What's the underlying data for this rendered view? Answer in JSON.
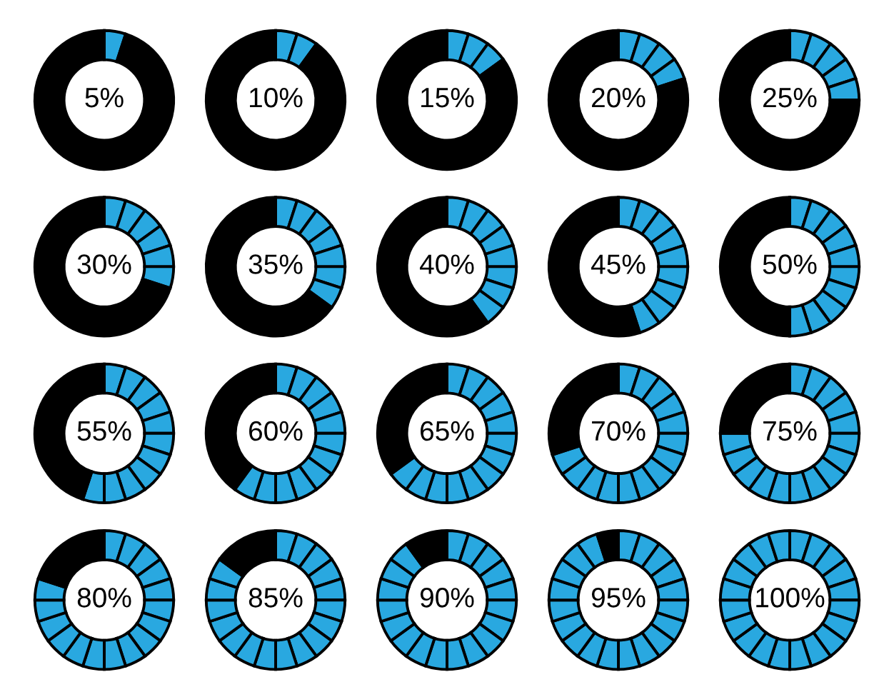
{
  "chart_data": [
    {
      "type": "donut",
      "categories": [
        null,
        null
      ],
      "values": [
        5,
        95
      ],
      "colors": [
        "#29a8e0",
        "#000000"
      ],
      "annotations": [
        "5%"
      ]
    },
    {
      "type": "donut",
      "categories": [
        null,
        null,
        null
      ],
      "values": [
        5,
        5,
        90
      ],
      "colors": [
        "#29a8e0",
        "#29a8e0",
        "#000000"
      ],
      "annotations": [
        "10%"
      ]
    },
    {
      "type": "donut",
      "categories": [
        null,
        null,
        null,
        null
      ],
      "values": [
        5,
        5,
        5,
        85
      ],
      "colors": [
        "#29a8e0",
        "#29a8e0",
        "#29a8e0",
        "#000000"
      ],
      "annotations": [
        "15%"
      ]
    },
    {
      "type": "donut",
      "categories": [
        null,
        null,
        null,
        null,
        null
      ],
      "values": [
        5,
        5,
        5,
        5,
        80
      ],
      "colors": [
        "#29a8e0",
        "#29a8e0",
        "#29a8e0",
        "#29a8e0",
        "#000000"
      ],
      "annotations": [
        "20%"
      ]
    },
    {
      "type": "donut",
      "categories": [
        null,
        null,
        null,
        null,
        null,
        null
      ],
      "values": [
        5,
        5,
        5,
        5,
        5,
        75
      ],
      "colors": [
        "#29a8e0",
        "#29a8e0",
        "#29a8e0",
        "#29a8e0",
        "#29a8e0",
        "#000000"
      ],
      "annotations": [
        "25%"
      ]
    },
    {
      "type": "donut",
      "categories": [
        null,
        null,
        null,
        null,
        null,
        null,
        null
      ],
      "values": [
        5,
        5,
        5,
        5,
        5,
        5,
        70
      ],
      "colors": [
        "#29a8e0",
        "#29a8e0",
        "#29a8e0",
        "#29a8e0",
        "#29a8e0",
        "#29a8e0",
        "#000000"
      ],
      "annotations": [
        "30%"
      ]
    },
    {
      "type": "donut",
      "categories": [
        null,
        null,
        null,
        null,
        null,
        null,
        null,
        null
      ],
      "values": [
        5,
        5,
        5,
        5,
        5,
        5,
        5,
        65
      ],
      "colors": [
        "#29a8e0",
        "#29a8e0",
        "#29a8e0",
        "#29a8e0",
        "#29a8e0",
        "#29a8e0",
        "#29a8e0",
        "#000000"
      ],
      "annotations": [
        "35%"
      ]
    },
    {
      "type": "donut",
      "categories": [
        null,
        null,
        null,
        null,
        null,
        null,
        null,
        null,
        null
      ],
      "values": [
        5,
        5,
        5,
        5,
        5,
        5,
        5,
        5,
        60
      ],
      "colors": [
        "#29a8e0",
        "#29a8e0",
        "#29a8e0",
        "#29a8e0",
        "#29a8e0",
        "#29a8e0",
        "#29a8e0",
        "#29a8e0",
        "#000000"
      ],
      "annotations": [
        "40%"
      ]
    },
    {
      "type": "donut",
      "categories": [
        null,
        null,
        null,
        null,
        null,
        null,
        null,
        null,
        null,
        null
      ],
      "values": [
        5,
        5,
        5,
        5,
        5,
        5,
        5,
        5,
        5,
        55
      ],
      "colors": [
        "#29a8e0",
        "#29a8e0",
        "#29a8e0",
        "#29a8e0",
        "#29a8e0",
        "#29a8e0",
        "#29a8e0",
        "#29a8e0",
        "#29a8e0",
        "#000000"
      ],
      "annotations": [
        "45%"
      ]
    },
    {
      "type": "donut",
      "categories": [
        null,
        null,
        null,
        null,
        null,
        null,
        null,
        null,
        null,
        null,
        null
      ],
      "values": [
        5,
        5,
        5,
        5,
        5,
        5,
        5,
        5,
        5,
        5,
        50
      ],
      "colors": [
        "#29a8e0",
        "#29a8e0",
        "#29a8e0",
        "#29a8e0",
        "#29a8e0",
        "#29a8e0",
        "#29a8e0",
        "#29a8e0",
        "#29a8e0",
        "#29a8e0",
        "#000000"
      ],
      "annotations": [
        "50%"
      ]
    },
    {
      "type": "donut",
      "categories": [
        null,
        null,
        null,
        null,
        null,
        null,
        null,
        null,
        null,
        null,
        null,
        null
      ],
      "values": [
        5,
        5,
        5,
        5,
        5,
        5,
        5,
        5,
        5,
        5,
        5,
        45
      ],
      "colors": [
        "#29a8e0",
        "#29a8e0",
        "#29a8e0",
        "#29a8e0",
        "#29a8e0",
        "#29a8e0",
        "#29a8e0",
        "#29a8e0",
        "#29a8e0",
        "#29a8e0",
        "#29a8e0",
        "#000000"
      ],
      "annotations": [
        "55%"
      ]
    },
    {
      "type": "donut",
      "categories": [
        null,
        null,
        null,
        null,
        null,
        null,
        null,
        null,
        null,
        null,
        null,
        null,
        null
      ],
      "values": [
        5,
        5,
        5,
        5,
        5,
        5,
        5,
        5,
        5,
        5,
        5,
        5,
        40
      ],
      "colors": [
        "#29a8e0",
        "#29a8e0",
        "#29a8e0",
        "#29a8e0",
        "#29a8e0",
        "#29a8e0",
        "#29a8e0",
        "#29a8e0",
        "#29a8e0",
        "#29a8e0",
        "#29a8e0",
        "#29a8e0",
        "#000000"
      ],
      "annotations": [
        "60%"
      ]
    },
    {
      "type": "donut",
      "categories": [
        null,
        null,
        null,
        null,
        null,
        null,
        null,
        null,
        null,
        null,
        null,
        null,
        null,
        null
      ],
      "values": [
        5,
        5,
        5,
        5,
        5,
        5,
        5,
        5,
        5,
        5,
        5,
        5,
        5,
        35
      ],
      "colors": [
        "#29a8e0",
        "#29a8e0",
        "#29a8e0",
        "#29a8e0",
        "#29a8e0",
        "#29a8e0",
        "#29a8e0",
        "#29a8e0",
        "#29a8e0",
        "#29a8e0",
        "#29a8e0",
        "#29a8e0",
        "#29a8e0",
        "#000000"
      ],
      "annotations": [
        "65%"
      ]
    },
    {
      "type": "donut",
      "categories": [
        null,
        null,
        null,
        null,
        null,
        null,
        null,
        null,
        null,
        null,
        null,
        null,
        null,
        null,
        null
      ],
      "values": [
        5,
        5,
        5,
        5,
        5,
        5,
        5,
        5,
        5,
        5,
        5,
        5,
        5,
        5,
        30
      ],
      "colors": [
        "#29a8e0",
        "#29a8e0",
        "#29a8e0",
        "#29a8e0",
        "#29a8e0",
        "#29a8e0",
        "#29a8e0",
        "#29a8e0",
        "#29a8e0",
        "#29a8e0",
        "#29a8e0",
        "#29a8e0",
        "#29a8e0",
        "#29a8e0",
        "#000000"
      ],
      "annotations": [
        "70%"
      ]
    },
    {
      "type": "donut",
      "categories": [
        null,
        null,
        null,
        null,
        null,
        null,
        null,
        null,
        null,
        null,
        null,
        null,
        null,
        null,
        null,
        null
      ],
      "values": [
        5,
        5,
        5,
        5,
        5,
        5,
        5,
        5,
        5,
        5,
        5,
        5,
        5,
        5,
        5,
        25
      ],
      "colors": [
        "#29a8e0",
        "#29a8e0",
        "#29a8e0",
        "#29a8e0",
        "#29a8e0",
        "#29a8e0",
        "#29a8e0",
        "#29a8e0",
        "#29a8e0",
        "#29a8e0",
        "#29a8e0",
        "#29a8e0",
        "#29a8e0",
        "#29a8e0",
        "#29a8e0",
        "#000000"
      ],
      "annotations": [
        "75%"
      ]
    },
    {
      "type": "donut",
      "categories": [
        null,
        null,
        null,
        null,
        null,
        null,
        null,
        null,
        null,
        null,
        null,
        null,
        null,
        null,
        null,
        null,
        null
      ],
      "values": [
        5,
        5,
        5,
        5,
        5,
        5,
        5,
        5,
        5,
        5,
        5,
        5,
        5,
        5,
        5,
        5,
        20
      ],
      "colors": [
        "#29a8e0",
        "#29a8e0",
        "#29a8e0",
        "#29a8e0",
        "#29a8e0",
        "#29a8e0",
        "#29a8e0",
        "#29a8e0",
        "#29a8e0",
        "#29a8e0",
        "#29a8e0",
        "#29a8e0",
        "#29a8e0",
        "#29a8e0",
        "#29a8e0",
        "#29a8e0",
        "#000000"
      ],
      "annotations": [
        "80%"
      ]
    },
    {
      "type": "donut",
      "categories": [
        null,
        null,
        null,
        null,
        null,
        null,
        null,
        null,
        null,
        null,
        null,
        null,
        null,
        null,
        null,
        null,
        null,
        null
      ],
      "values": [
        5,
        5,
        5,
        5,
        5,
        5,
        5,
        5,
        5,
        5,
        5,
        5,
        5,
        5,
        5,
        5,
        5,
        15
      ],
      "colors": [
        "#29a8e0",
        "#29a8e0",
        "#29a8e0",
        "#29a8e0",
        "#29a8e0",
        "#29a8e0",
        "#29a8e0",
        "#29a8e0",
        "#29a8e0",
        "#29a8e0",
        "#29a8e0",
        "#29a8e0",
        "#29a8e0",
        "#29a8e0",
        "#29a8e0",
        "#29a8e0",
        "#29a8e0",
        "#000000"
      ],
      "annotations": [
        "85%"
      ]
    },
    {
      "type": "donut",
      "categories": [
        null,
        null,
        null,
        null,
        null,
        null,
        null,
        null,
        null,
        null,
        null,
        null,
        null,
        null,
        null,
        null,
        null,
        null,
        null
      ],
      "values": [
        5,
        5,
        5,
        5,
        5,
        5,
        5,
        5,
        5,
        5,
        5,
        5,
        5,
        5,
        5,
        5,
        5,
        5,
        10
      ],
      "colors": [
        "#29a8e0",
        "#29a8e0",
        "#29a8e0",
        "#29a8e0",
        "#29a8e0",
        "#29a8e0",
        "#29a8e0",
        "#29a8e0",
        "#29a8e0",
        "#29a8e0",
        "#29a8e0",
        "#29a8e0",
        "#29a8e0",
        "#29a8e0",
        "#29a8e0",
        "#29a8e0",
        "#29a8e0",
        "#29a8e0",
        "#000000"
      ],
      "annotations": [
        "90%"
      ]
    },
    {
      "type": "donut",
      "categories": [
        null,
        null,
        null,
        null,
        null,
        null,
        null,
        null,
        null,
        null,
        null,
        null,
        null,
        null,
        null,
        null,
        null,
        null,
        null,
        null
      ],
      "values": [
        5,
        5,
        5,
        5,
        5,
        5,
        5,
        5,
        5,
        5,
        5,
        5,
        5,
        5,
        5,
        5,
        5,
        5,
        5,
        5
      ],
      "colors": [
        "#29a8e0",
        "#29a8e0",
        "#29a8e0",
        "#29a8e0",
        "#29a8e0",
        "#29a8e0",
        "#29a8e0",
        "#29a8e0",
        "#29a8e0",
        "#29a8e0",
        "#29a8e0",
        "#29a8e0",
        "#29a8e0",
        "#29a8e0",
        "#29a8e0",
        "#29a8e0",
        "#29a8e0",
        "#29a8e0",
        "#29a8e0",
        "#000000"
      ],
      "annotations": [
        "95%"
      ]
    },
    {
      "type": "donut",
      "categories": [
        null,
        null,
        null,
        null,
        null,
        null,
        null,
        null,
        null,
        null,
        null,
        null,
        null,
        null,
        null,
        null,
        null,
        null,
        null,
        null
      ],
      "values": [
        5,
        5,
        5,
        5,
        5,
        5,
        5,
        5,
        5,
        5,
        5,
        5,
        5,
        5,
        5,
        5,
        5,
        5,
        5,
        5
      ],
      "colors": [
        "#29a8e0",
        "#29a8e0",
        "#29a8e0",
        "#29a8e0",
        "#29a8e0",
        "#29a8e0",
        "#29a8e0",
        "#29a8e0",
        "#29a8e0",
        "#29a8e0",
        "#29a8e0",
        "#29a8e0",
        "#29a8e0",
        "#29a8e0",
        "#29a8e0",
        "#29a8e0",
        "#29a8e0",
        "#29a8e0",
        "#29a8e0",
        "#29a8e0"
      ],
      "annotations": [
        "100%"
      ]
    }
  ]
}
